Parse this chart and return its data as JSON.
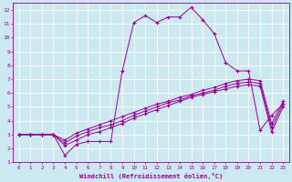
{
  "xlabel": "Windchill (Refroidissement éolien,°C)",
  "bg_color": "#cce8f0",
  "line_color": "#990099",
  "grid_color": "#ffffff",
  "xlim": [
    -0.5,
    23.5
  ],
  "ylim": [
    1,
    12.5
  ],
  "xticks": [
    0,
    1,
    2,
    3,
    4,
    5,
    6,
    7,
    8,
    9,
    10,
    11,
    12,
    13,
    14,
    15,
    16,
    17,
    18,
    19,
    20,
    21,
    22,
    23
  ],
  "yticks": [
    1,
    2,
    3,
    4,
    5,
    6,
    7,
    8,
    9,
    10,
    11,
    12
  ],
  "lines": [
    {
      "x": [
        0,
        1,
        2,
        3,
        4,
        5,
        6,
        7,
        8,
        9,
        10,
        11,
        12,
        13,
        14,
        15,
        16,
        17,
        18,
        19,
        20,
        21,
        22,
        23
      ],
      "y": [
        3,
        3,
        3,
        3,
        1.5,
        2.3,
        2.5,
        2.5,
        2.5,
        7.6,
        11.1,
        11.6,
        11.1,
        11.5,
        11.5,
        12.2,
        11.3,
        10.3,
        8.2,
        7.6,
        7.6,
        3.3,
        4.4,
        5.2
      ]
    },
    {
      "x": [
        0,
        1,
        2,
        3,
        4,
        5,
        6,
        7,
        8,
        9,
        10,
        11,
        12,
        13,
        14,
        15,
        16,
        17,
        18,
        19,
        20,
        21,
        22,
        23
      ],
      "y": [
        3,
        3,
        3,
        3,
        2.2,
        2.6,
        3.0,
        3.2,
        3.5,
        3.8,
        4.2,
        4.5,
        4.8,
        5.1,
        5.4,
        5.7,
        5.9,
        6.1,
        6.3,
        6.5,
        6.6,
        6.5,
        3.2,
        5.0
      ]
    },
    {
      "x": [
        0,
        1,
        2,
        3,
        4,
        5,
        6,
        7,
        8,
        9,
        10,
        11,
        12,
        13,
        14,
        15,
        16,
        17,
        18,
        19,
        20,
        21,
        22,
        23
      ],
      "y": [
        3,
        3,
        3,
        3,
        2.4,
        2.9,
        3.2,
        3.5,
        3.7,
        4.0,
        4.4,
        4.7,
        5.0,
        5.3,
        5.5,
        5.8,
        6.0,
        6.2,
        6.5,
        6.7,
        6.8,
        6.7,
        3.5,
        5.2
      ]
    },
    {
      "x": [
        0,
        1,
        2,
        3,
        4,
        5,
        6,
        7,
        8,
        9,
        10,
        11,
        12,
        13,
        14,
        15,
        16,
        17,
        18,
        19,
        20,
        21,
        22,
        23
      ],
      "y": [
        3,
        3,
        3,
        3,
        2.6,
        3.1,
        3.4,
        3.7,
        4.0,
        4.3,
        4.6,
        4.9,
        5.2,
        5.4,
        5.7,
        5.9,
        6.2,
        6.4,
        6.7,
        6.9,
        7.0,
        6.9,
        3.8,
        5.4
      ]
    }
  ]
}
